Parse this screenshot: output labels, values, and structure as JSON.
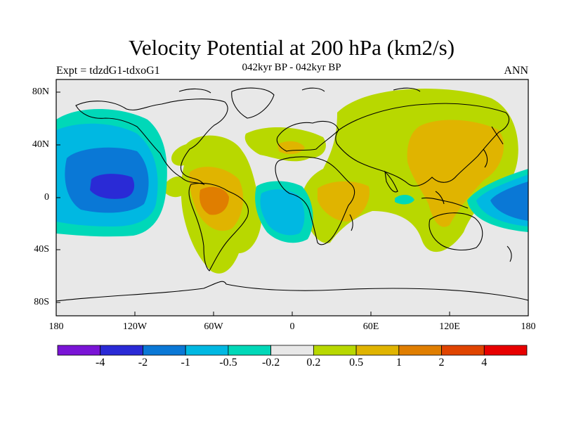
{
  "header": {
    "title": "Velocity Potential at 200 hPa (km2/s)",
    "subtitle": "042kyr BP - 042kyr BP",
    "left_label": "Expt = tdzdG1-tdxoG1",
    "right_label": "ANN"
  },
  "chart_data": {
    "type": "contour-map",
    "title": "Velocity Potential at 200 hPa (km2/s)",
    "subtitle": "042kyr BP - 042kyr BP",
    "lon_range": [
      -180,
      180
    ],
    "lat_range": [
      -90,
      90
    ],
    "x_ticks": [
      "180",
      "120W",
      "60W",
      "0",
      "60E",
      "120E",
      "180"
    ],
    "y_ticks": [
      "80N",
      "40N",
      "0",
      "40S",
      "80S"
    ],
    "colorbar": {
      "labels": [
        "-4",
        "-2",
        "-1",
        "-0.5",
        "-0.2",
        "0.2",
        "0.5",
        "1",
        "2",
        "4"
      ],
      "colors": [
        "#7a14d6",
        "#2a2ad6",
        "#0a78d6",
        "#00b8e2",
        "#00d8b8",
        "#e8e8e8",
        "#b8d800",
        "#e0b400",
        "#e07e00",
        "#e04400",
        "#e80000"
      ]
    },
    "background_color": "#e8e8e8"
  }
}
